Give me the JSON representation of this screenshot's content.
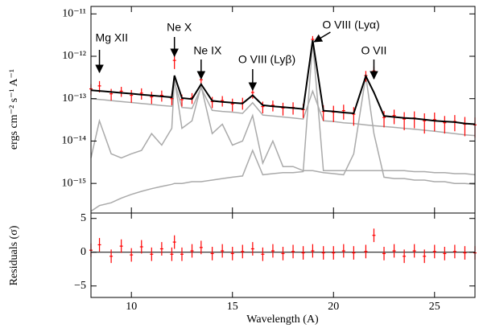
{
  "chart_data": [
    {
      "type": "line",
      "log_y": true,
      "y_label": "ergs cm⁻² s⁻¹ A⁻¹",
      "xlim": [
        8,
        27
      ],
      "ylim": [
        2e-16,
        1.5e-11
      ],
      "yticks": [
        {
          "value": 1e-11,
          "label": "10⁻¹¹"
        },
        {
          "value": 1e-12,
          "label": "10⁻¹²"
        },
        {
          "value": 1e-13,
          "label": "10⁻¹³"
        },
        {
          "value": 1e-14,
          "label": "10⁻¹⁴"
        },
        {
          "value": 1e-15,
          "label": "10⁻¹⁵"
        }
      ],
      "x": [
        8,
        8.42,
        9,
        9.5,
        10,
        10.5,
        11,
        11.5,
        12,
        12.13,
        12.5,
        13,
        13.45,
        14,
        14.5,
        15,
        15.5,
        16,
        16.5,
        17,
        17.5,
        18,
        18.5,
        18.97,
        19.5,
        20,
        20.5,
        21,
        21.6,
        22,
        22.5,
        23,
        23.5,
        24,
        24.5,
        25,
        25.5,
        26,
        26.5,
        27
      ],
      "series": [
        {
          "color": "#aaaaaa",
          "values": [
            1e-13,
            9.6e-14,
            9e-14,
            8.5e-14,
            8.1e-14,
            7.7e-14,
            7.3e-14,
            6.9e-14,
            6.6e-14,
            2.5e-13,
            6.2e-14,
            5.9e-14,
            1.8e-13,
            5.3e-14,
            5e-14,
            4.8e-14,
            4.5e-14,
            8e-14,
            4.1e-14,
            3.9e-14,
            3.7e-14,
            3.5e-14,
            3.3e-14,
            1.5e-13,
            3e-14,
            2.9e-14,
            2.7e-14,
            2.6e-14,
            2.4e-14,
            2.3e-14,
            2.2e-14,
            2.1e-14,
            2e-14,
            1.9e-14,
            1.8e-14,
            1.7e-14,
            1.6e-14,
            1.5e-14,
            1.4e-14,
            1.35e-14
          ]
        },
        {
          "color": "#aaaaaa",
          "values": [
            4e-15,
            3e-14,
            5e-15,
            4e-15,
            5e-15,
            6e-15,
            1.5e-14,
            8e-15,
            2e-14,
            3e-13,
            2e-14,
            3e-14,
            2e-13,
            1.5e-14,
            2.5e-14,
            8e-15,
            1e-14,
            4e-14,
            3e-15,
            1e-14,
            2.5e-15,
            2.5e-15,
            2e-15,
            2e-15,
            1.8e-15,
            1.7e-15,
            1.6e-15,
            5e-15,
            3.4e-13,
            1.5e-14,
            1.4e-15,
            1.3e-15,
            1.3e-15,
            1.2e-15,
            1.2e-15,
            1.1e-15,
            1.1e-15,
            1e-15,
            1e-15,
            9.5e-16
          ]
        },
        {
          "color": "#aaaaaa",
          "values": [
            2.2e-16,
            3e-16,
            3.5e-16,
            4.5e-16,
            5.5e-16,
            6.5e-16,
            7.5e-16,
            8.5e-16,
            9.5e-16,
            1e-15,
            1e-15,
            1.1e-15,
            1.1e-15,
            1.2e-15,
            1.3e-15,
            1.4e-15,
            1.5e-15,
            6e-15,
            1.6e-15,
            1.7e-15,
            1.8e-15,
            1.8e-15,
            1.9e-15,
            2.2e-12,
            2e-15,
            2e-15,
            2e-15,
            2e-15,
            2e-15,
            2e-15,
            2e-15,
            2e-15,
            2e-15,
            1.9e-15,
            1.9e-15,
            1.8e-15,
            1.8e-15,
            1.7e-15,
            1.7e-15,
            1.6e-15
          ]
        },
        {
          "color": "#ff0000",
          "values": [
            1.7e-13,
            2e-13,
            1.3e-13,
            1.5e-13,
            1.2e-13,
            1.35e-13,
            1.1e-13,
            1.2e-13,
            1e-13,
            8e-13,
            9.5e-14,
            1.05e-13,
            2.8e-13,
            8.5e-14,
            9e-14,
            7.5e-14,
            8e-14,
            1.4e-13,
            6.5e-14,
            7e-14,
            6e-14,
            6.2e-14,
            5.5e-14,
            2.5e-12,
            5e-14,
            4.8e-14,
            5.2e-14,
            4.3e-14,
            3.5e-13,
            4.5e-13,
            3.6e-14,
            4e-14,
            3.3e-14,
            3.5e-14,
            3e-14,
            3.2e-14,
            2.7e-14,
            2.9e-14,
            2.5e-14,
            2.4e-14
          ],
          "errors": [
            5e-14,
            6e-14,
            4e-14,
            4e-14,
            4e-14,
            4e-14,
            3.5e-14,
            3.5e-14,
            3e-14,
            3e-13,
            3e-14,
            3e-14,
            8e-14,
            2.5e-14,
            2.5e-14,
            2.5e-14,
            2.5e-14,
            4e-14,
            2e-14,
            2e-14,
            2e-14,
            2e-14,
            2e-14,
            5e-13,
            2e-14,
            2e-14,
            2e-14,
            2e-14,
            1e-13,
            1.2e-13,
            1.5e-14,
            1.5e-14,
            1.5e-14,
            1.5e-14,
            1.5e-14,
            1.5e-14,
            1.2e-14,
            1.2e-14,
            1.2e-14,
            1.2e-14
          ]
        },
        {
          "color": "#000000",
          "values": [
            1.58e-13,
            1.52e-13,
            1.44e-13,
            1.37e-13,
            1.31e-13,
            1.24e-13,
            1.19e-13,
            1.13e-13,
            1.08e-13,
            3.5e-13,
            1.03e-13,
            9.8e-14,
            2.2e-13,
            8.9e-14,
            8.4e-14,
            8e-14,
            7.7e-14,
            1.2e-13,
            7e-14,
            6.6e-14,
            6.3e-14,
            6e-14,
            5.7e-14,
            2.4e-12,
            5.2e-14,
            5e-14,
            4.7e-14,
            4.5e-14,
            3.4e-13,
            1.4e-13,
            3.9e-14,
            3.7e-14,
            3.5e-14,
            3.4e-14,
            3.2e-14,
            3e-14,
            2.9e-14,
            2.8e-14,
            2.6e-14,
            2.5e-14
          ]
        }
      ],
      "annotations": [
        {
          "text": "Mg XII",
          "x": 8.42
        },
        {
          "text": "Ne X",
          "x": 12.13
        },
        {
          "text": "Ne IX",
          "x": 13.45
        },
        {
          "text": "O VIII (Lyβ)",
          "x": 16.0
        },
        {
          "text": "O VIII (Lyα)",
          "x": 18.97
        },
        {
          "text": "O VII",
          "x": 22.0
        }
      ]
    },
    {
      "type": "errorbar",
      "y_label": "Residuals (σ)",
      "x_label": "Wavelength (A)",
      "xlim": [
        8,
        27
      ],
      "ylim": [
        -6.7,
        5.8
      ],
      "xticks": [
        10,
        15,
        20,
        25
      ],
      "yticks": [
        5,
        0,
        {
          "value": -5,
          "label": "−5"
        }
      ],
      "x": [
        8,
        8.42,
        9,
        9.5,
        10,
        10.5,
        11,
        11.5,
        12,
        12.13,
        12.5,
        13,
        13.45,
        14,
        14.5,
        15,
        15.5,
        16,
        16.5,
        17,
        17.5,
        18,
        18.5,
        18.97,
        19.5,
        20,
        20.5,
        21,
        21.6,
        22,
        22.5,
        23,
        23.5,
        24,
        24.5,
        25,
        25.5,
        26,
        26.5,
        27
      ],
      "series": [
        {
          "color": "#ff0000",
          "values": [
            0.3,
            1.1,
            -0.6,
            0.9,
            -0.4,
            0.8,
            -0.3,
            0.5,
            -0.3,
            1.5,
            -0.3,
            0.2,
            0.7,
            -0.2,
            0.2,
            -0.2,
            0.1,
            0.5,
            -0.3,
            0.2,
            -0.2,
            0.1,
            -0.1,
            0.2,
            -0.1,
            -0.1,
            0.2,
            -0.1,
            0.1,
            2.5,
            -0.2,
            0.2,
            -0.6,
            0.2,
            -0.6,
            0.1,
            -0.2,
            0.1,
            -0.1,
            -0.1
          ],
          "errors": [
            1,
            1,
            1,
            1,
            1,
            1,
            1,
            1,
            1,
            1,
            1,
            1,
            1,
            1,
            1,
            1,
            1,
            1,
            1,
            1,
            1,
            1,
            1,
            1,
            1,
            1,
            1,
            1,
            1,
            1,
            1,
            1,
            1,
            1,
            1,
            1,
            1,
            1,
            1,
            1
          ]
        }
      ]
    }
  ]
}
